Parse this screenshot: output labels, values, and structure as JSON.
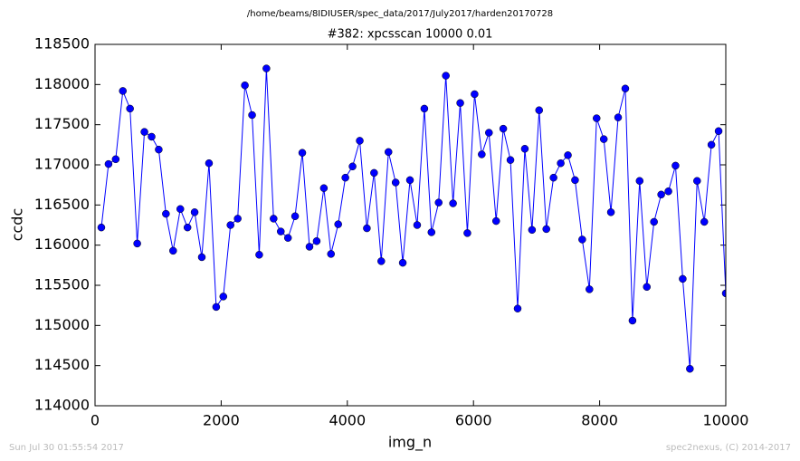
{
  "chart_data": {
    "type": "line",
    "suptitle": "/home/beams/8IDIUSER/spec_data/2017/July2017/harden20170728",
    "title": "#382: xpcsscan 10000 0.01",
    "xlabel": "img_n",
    "ylabel": "ccdc",
    "footer_left": "Sun Jul 30 01:55:54 2017",
    "footer_right": "spec2nexus, (C) 2014-2017",
    "x": [
      100,
      214,
      328,
      441,
      555,
      669,
      783,
      897,
      1010,
      1124,
      1238,
      1352,
      1466,
      1579,
      1693,
      1807,
      1921,
      2034,
      2148,
      2262,
      2376,
      2490,
      2603,
      2717,
      2831,
      2945,
      3059,
      3172,
      3286,
      3400,
      3514,
      3628,
      3741,
      3855,
      3969,
      4083,
      4197,
      4310,
      4424,
      4538,
      4652,
      4766,
      4879,
      4993,
      5107,
      5221,
      5334,
      5448,
      5562,
      5676,
      5790,
      5903,
      6017,
      6131,
      6245,
      6359,
      6472,
      6586,
      6700,
      6814,
      6928,
      7041,
      7155,
      7269,
      7383,
      7497,
      7610,
      7724,
      7838,
      7952,
      8066,
      8179,
      8293,
      8407,
      8521,
      8634,
      8748,
      8862,
      8976,
      9090,
      9203,
      9317,
      9431,
      9545,
      9659,
      9772,
      9886,
      10000
    ],
    "series": [
      {
        "name": "ccdc",
        "color": "#0000ff",
        "values": [
          116220,
          117010,
          117070,
          117920,
          117700,
          116020,
          117410,
          117350,
          117190,
          116390,
          115930,
          116450,
          116220,
          116410,
          115850,
          117020,
          115230,
          115360,
          116250,
          116330,
          117990,
          117620,
          115880,
          118200,
          116330,
          116170,
          116090,
          116360,
          117150,
          115980,
          116050,
          116710,
          115890,
          116260,
          116840,
          116980,
          117300,
          116210,
          116900,
          115800,
          117160,
          116780,
          115780,
          116810,
          116250,
          117700,
          116160,
          116530,
          118110,
          116520,
          117770,
          116150,
          117880,
          117130,
          117400,
          116300,
          117450,
          117060,
          115210,
          117200,
          116190,
          117680,
          116200,
          116840,
          117020,
          117120,
          116810,
          116070,
          115450,
          117580,
          117320,
          116410,
          117590,
          117950,
          115060,
          116800,
          115480,
          116290,
          116630,
          116670,
          116990,
          115580,
          114460,
          116800,
          116290,
          117250,
          117420,
          115400
        ]
      }
    ],
    "xlim": [
      0,
      10000
    ],
    "xticks": [
      0,
      2000,
      4000,
      6000,
      8000,
      10000
    ],
    "ylim": [
      114000,
      118500
    ],
    "yticks": [
      114000,
      114500,
      115000,
      115500,
      116000,
      116500,
      117000,
      117500,
      118000,
      118500
    ],
    "grid": false
  }
}
